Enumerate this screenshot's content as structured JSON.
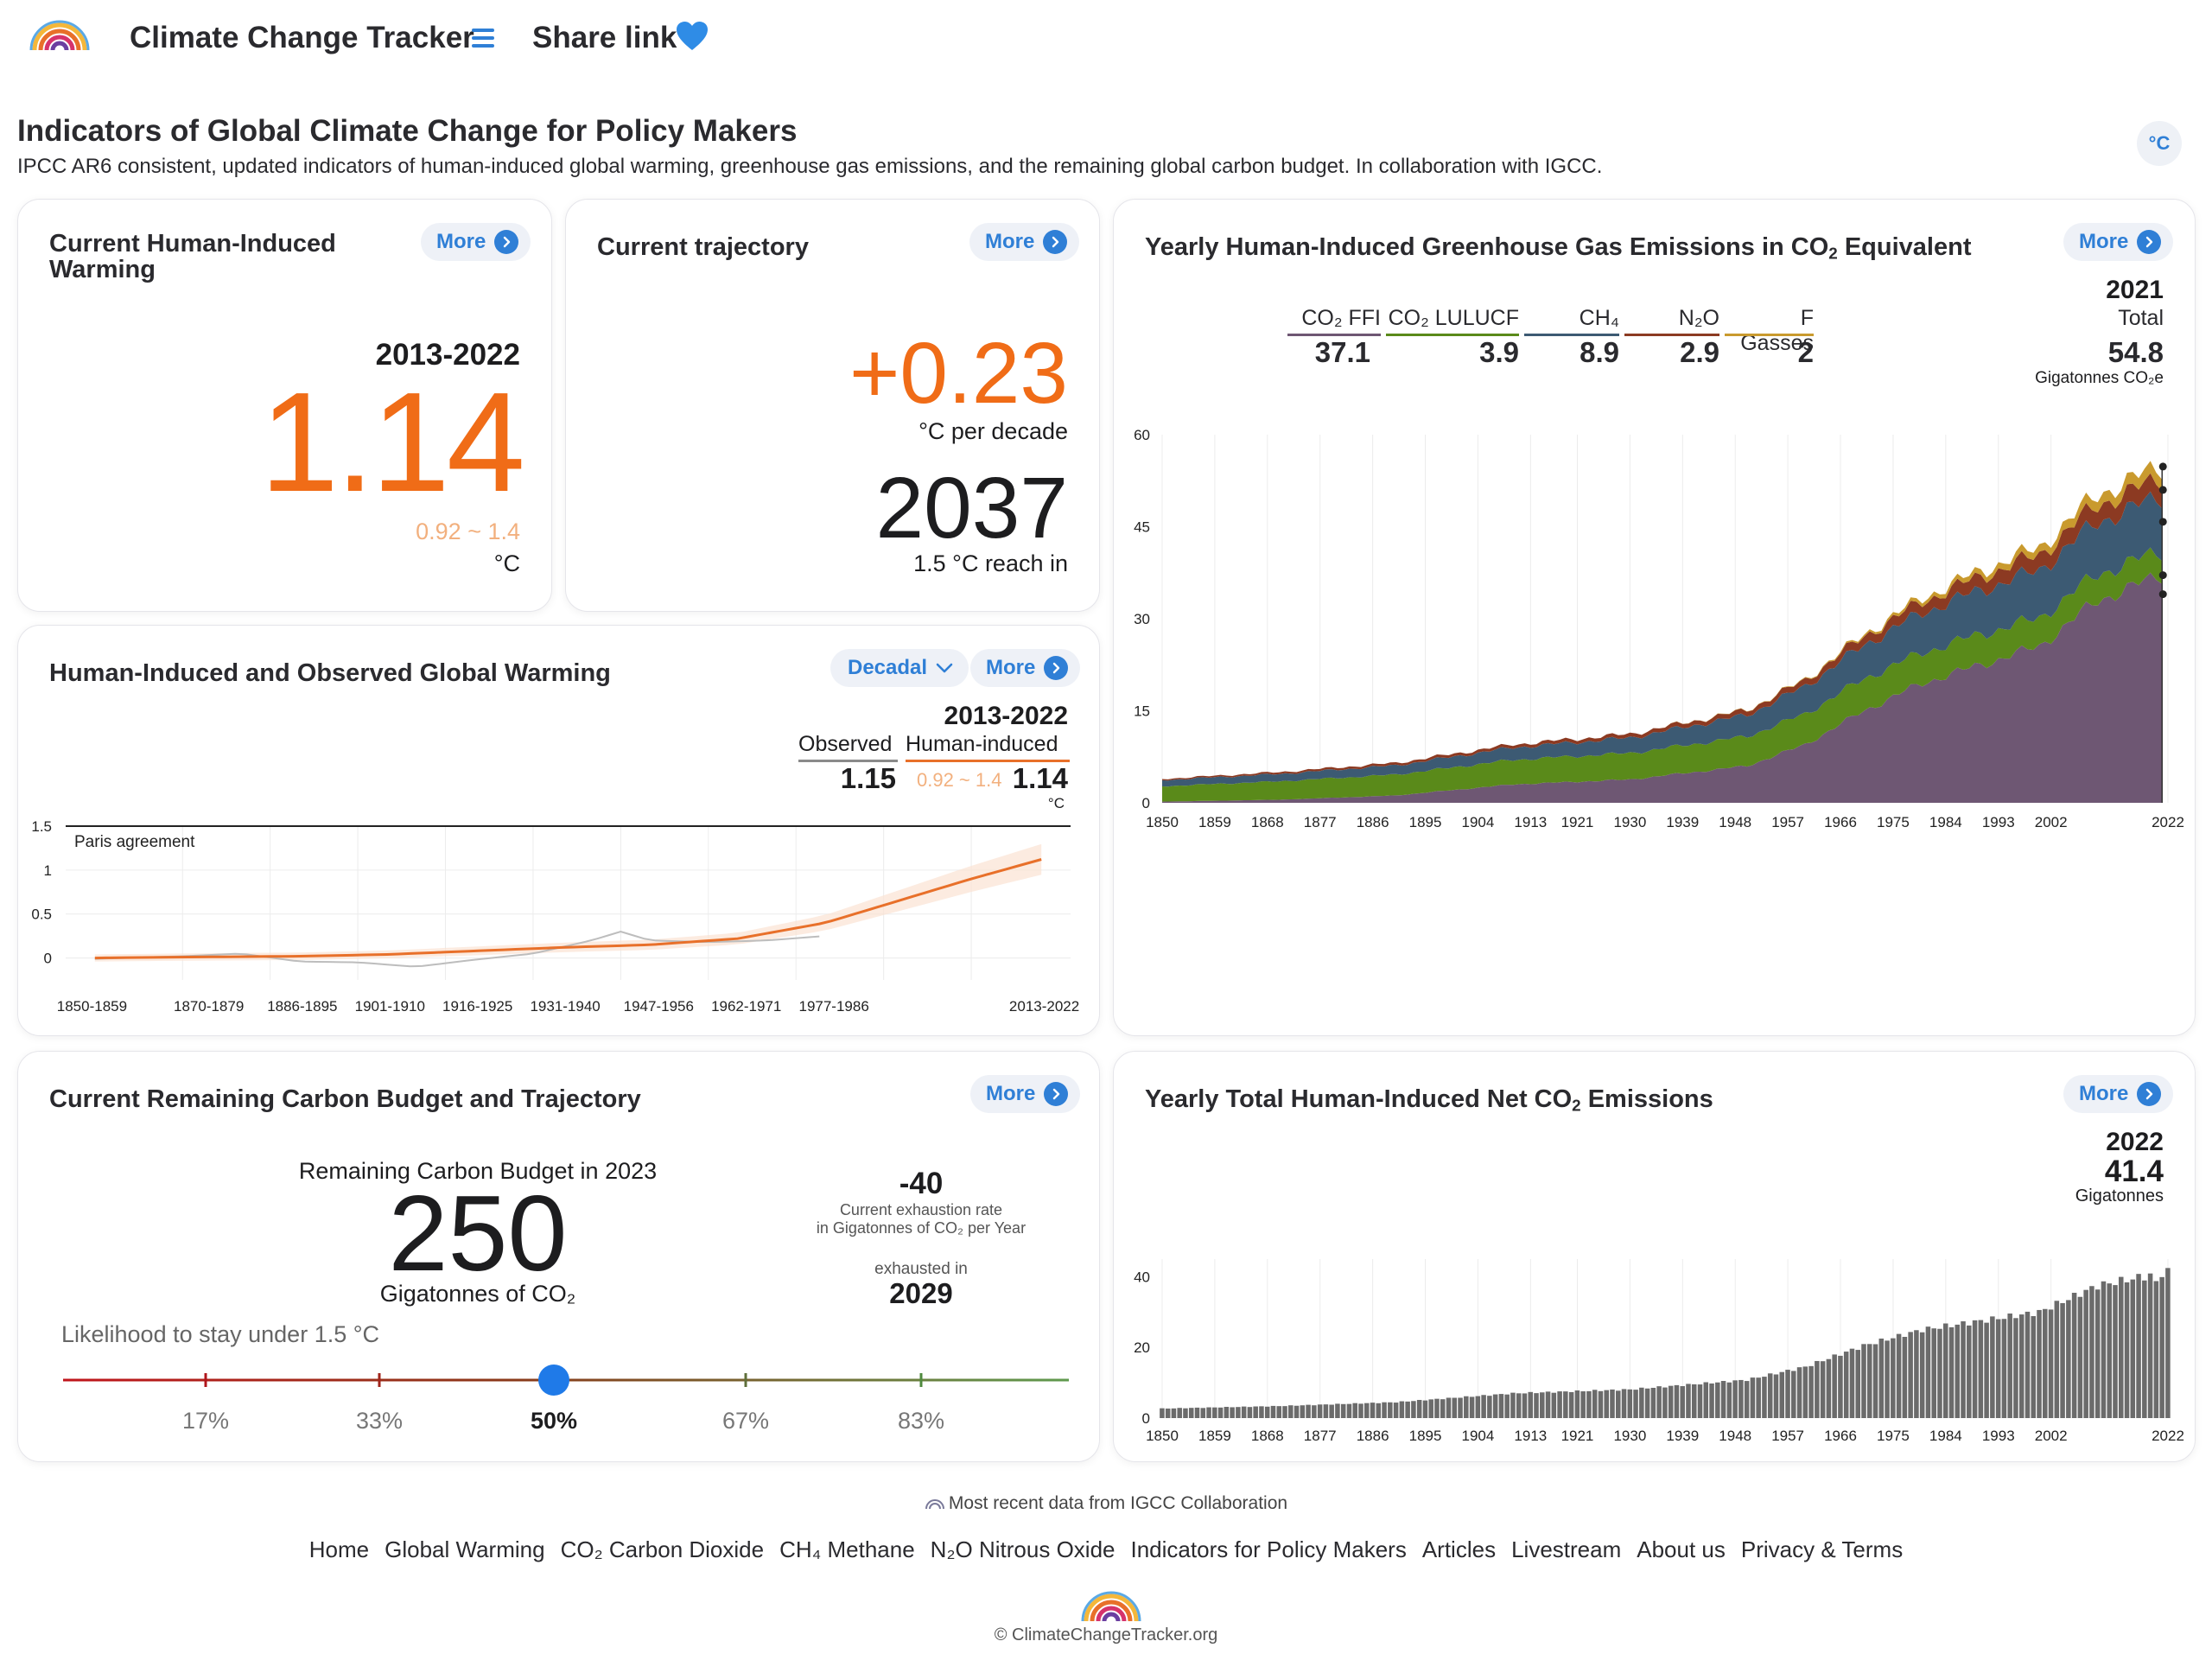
{
  "header": {
    "app_title": "Climate Change Tracker",
    "share_label": "Share link",
    "page_title": "Indicators of Global Climate Change for Policy Makers",
    "page_subtitle": "IPCC AR6 consistent, updated indicators of human-induced global warming, greenhouse gas emissions, and the remaining global carbon budget. In collaboration with IGCC.",
    "unit_toggle": "°C"
  },
  "more_label": "More",
  "warming_card": {
    "title_line1": "Current Human-Induced",
    "title_line2": "Warming",
    "period": "2013-2022",
    "value": "1.14",
    "range": "0.92 ~ 1.4",
    "unit": "°C"
  },
  "trajectory_card": {
    "title": "Current trajectory",
    "rate": "+0.23",
    "rate_unit": "°C per decade",
    "year": "2037",
    "year_label": "1.5 °C reach in"
  },
  "observed_card": {
    "title": "Human-Induced and Observed Global Warming",
    "dropdown_value": "Decadal",
    "period": "2013-2022",
    "observed_label": "Observed",
    "human_label": "Human-induced",
    "observed_value": "1.15",
    "human_range": "0.92 ~ 1.4",
    "human_value": "1.14",
    "unit": "°C",
    "annotation": "Paris agreement"
  },
  "ghg_card": {
    "title_prefix": "Yearly Human-Induced Greenhouse Gas Emissions in CO",
    "title_sub": "2",
    "title_suffix": " Equivalent",
    "year": "2021",
    "total_label": "Total",
    "total_value": "54.8",
    "unit": "Gigatonnes CO₂e",
    "legend": [
      {
        "label": "CO₂ FFI",
        "value": "37.1",
        "color": "#6e5773"
      },
      {
        "label": "CO₂ LULUCF",
        "value": "3.9",
        "color": "#5a8a1a"
      },
      {
        "label": "CH₄",
        "value": "8.9",
        "color": "#3c5a73"
      },
      {
        "label": "N₂O",
        "value": "2.9",
        "color": "#8c3a22"
      },
      {
        "label": "F Gasses",
        "value": "2",
        "color": "#c99a2e"
      }
    ]
  },
  "budget_card": {
    "title": "Current Remaining Carbon Budget and Trajectory",
    "budget_label": "Remaining Carbon Budget in 2023",
    "budget_value": "250",
    "budget_unit": "Gigatonnes of CO₂",
    "rate_value": "-40",
    "rate_label1": "Current exhaustion rate",
    "rate_label2": "in Gigatonnes of CO₂ per Year",
    "exhausted_label": "exhausted in",
    "exhausted_year": "2029",
    "likelihood_label": "Likelihood to stay under 1.5 °C",
    "likelihood_options": [
      "17%",
      "33%",
      "50%",
      "67%",
      "83%"
    ],
    "likelihood_selected": "50%"
  },
  "net_card": {
    "title_prefix": "Yearly Total Human-Induced Net CO",
    "title_sub": "2",
    "title_suffix": " Emissions",
    "year": "2022",
    "value": "41.4",
    "unit": "Gigatonnes"
  },
  "footer": {
    "note": "Most recent data from IGCC Collaboration",
    "links": [
      "Home",
      "Global Warming",
      "CO₂ Carbon Dioxide",
      "CH₄ Methane",
      "N₂O Nitrous Oxide",
      "Indicators for Policy Makers",
      "Articles",
      "Livestream",
      "About us",
      "Privacy & Terms"
    ],
    "copyright": "© ClimateChangeTracker.org"
  },
  "chart_data": [
    {
      "type": "line",
      "title": "Human-Induced and Observed Global Warming",
      "categories": [
        "1850-1859",
        "1870-1879",
        "1886-1895",
        "1901-1910",
        "1916-1925",
        "1931-1940",
        "1947-1956",
        "1962-1971",
        "1977-1986",
        "2013-2022"
      ],
      "yticks": [
        0,
        0.5,
        1,
        1.5
      ],
      "ylim": [
        -0.25,
        1.5
      ],
      "series": [
        {
          "name": "Human-induced",
          "color": "#e8702a",
          "x": [
            1855,
            1870,
            1890,
            1905,
            1920,
            1935,
            1950,
            1965,
            1980,
            1995,
            2005,
            2018
          ],
          "y": [
            0.0,
            0.01,
            0.02,
            0.04,
            0.08,
            0.12,
            0.15,
            0.22,
            0.4,
            0.7,
            0.9,
            1.14
          ]
        },
        {
          "name": "Observed",
          "color": "#bdbdbd",
          "x": [
            1855,
            1870,
            1880,
            1890,
            1900,
            1910,
            1920,
            1930,
            1940,
            1945,
            1950,
            1960,
            1970,
            1980
          ],
          "y": [
            -0.01,
            0.02,
            0.05,
            -0.04,
            -0.05,
            -0.1,
            -0.02,
            0.05,
            0.2,
            0.3,
            0.2,
            0.18,
            0.2,
            0.25
          ]
        }
      ],
      "annotation": "Paris agreement"
    },
    {
      "type": "area",
      "title": "Yearly Human-Induced Greenhouse Gas Emissions in CO₂ Equivalent",
      "xticks": [
        1850,
        1859,
        1868,
        1877,
        1886,
        1895,
        1904,
        1913,
        1921,
        1930,
        1939,
        1948,
        1957,
        1966,
        1975,
        1984,
        1993,
        2002,
        2022
      ],
      "yticks": [
        0,
        15,
        30,
        45,
        60
      ],
      "ylim": [
        0,
        60
      ],
      "x": [
        1850,
        1870,
        1890,
        1910,
        1930,
        1950,
        1960,
        1970,
        1980,
        1990,
        2000,
        2010,
        2021
      ],
      "series": [
        {
          "name": "CO₂ FFI",
          "color": "#6e5773",
          "values": [
            0.2,
            0.5,
            1.2,
            3.0,
            3.8,
            6.0,
            9.5,
            15.0,
            19.5,
            22.5,
            25.5,
            33.0,
            37.1
          ]
        },
        {
          "name": "CO₂ LULUCF",
          "color": "#5a8a1a",
          "values": [
            2.5,
            3.0,
            3.4,
            4.0,
            4.3,
            4.8,
            5.0,
            5.2,
            5.0,
            5.0,
            4.6,
            4.3,
            3.9
          ]
        },
        {
          "name": "CH₄",
          "color": "#3c5a73",
          "values": [
            1.0,
            1.2,
            1.5,
            2.0,
            2.5,
            3.5,
            4.5,
            5.5,
            6.5,
            7.2,
            7.8,
            8.5,
            8.9
          ]
        },
        {
          "name": "N₂O",
          "color": "#8c3a22",
          "values": [
            0.2,
            0.3,
            0.4,
            0.5,
            0.6,
            0.8,
            1.0,
            1.4,
            1.8,
            2.2,
            2.5,
            2.8,
            2.9
          ]
        },
        {
          "name": "F Gasses",
          "color": "#c99a2e",
          "values": [
            0.0,
            0.0,
            0.0,
            0.0,
            0.0,
            0.05,
            0.1,
            0.3,
            0.6,
            0.9,
            1.2,
            1.7,
            2.0
          ]
        }
      ]
    },
    {
      "type": "bar",
      "title": "Yearly Total Human-Induced Net CO₂ Emissions",
      "xticks": [
        1850,
        1859,
        1868,
        1877,
        1886,
        1895,
        1904,
        1913,
        1921,
        1930,
        1939,
        1948,
        1957,
        1966,
        1975,
        1984,
        1993,
        2002,
        2022
      ],
      "yticks": [
        0,
        20,
        40
      ],
      "ylim": [
        0,
        45
      ],
      "x": [
        1850,
        1870,
        1890,
        1910,
        1930,
        1950,
        1960,
        1970,
        1980,
        1990,
        2000,
        2010,
        2022
      ],
      "values": [
        2.7,
        3.4,
        4.5,
        7.0,
        8.1,
        10.8,
        14.5,
        20.5,
        25.0,
        27.5,
        30.0,
        37.5,
        41.4
      ],
      "color": "#6b6b6b"
    },
    {
      "type": "scatter",
      "title": "Likelihood to stay under 1.5 °C",
      "categories": [
        "17%",
        "33%",
        "50%",
        "67%",
        "83%"
      ],
      "selected": "50%"
    }
  ]
}
